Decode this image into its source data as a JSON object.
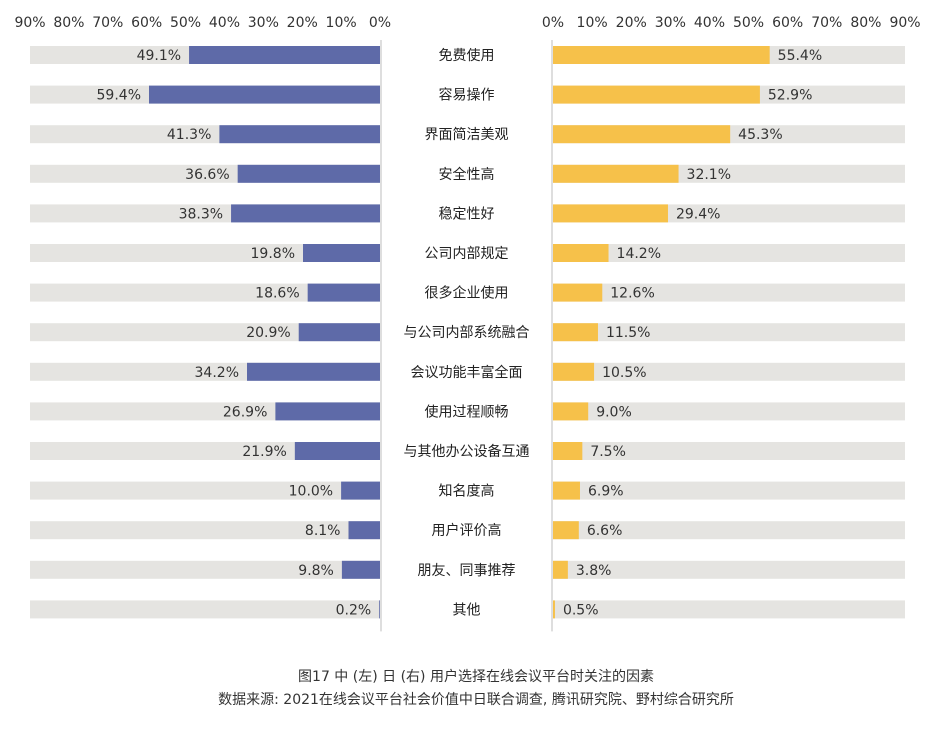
{
  "chart_data": {
    "type": "bar",
    "categories": [
      "免费使用",
      "容易操作",
      "界面简洁美观",
      "安全性高",
      "稳定性好",
      "公司内部规定",
      "很多企业使用",
      "与公司内部系统融合",
      "会议功能丰富全面",
      "使用过程顺畅",
      "与其他办公设备互通",
      "知名度高",
      "用户评价高",
      "朋友、同事推荐",
      "其他"
    ],
    "series": [
      {
        "name": "中",
        "side": "left",
        "color": "#5e6aa8",
        "values": [
          49.1,
          59.4,
          41.3,
          36.6,
          38.3,
          19.8,
          18.6,
          20.9,
          34.2,
          26.9,
          21.9,
          10.0,
          8.1,
          9.8,
          0.2
        ],
        "labels": [
          "49.1%",
          "59.4%",
          "41.3%",
          "36.6%",
          "38.3%",
          "19.8%",
          "18.6%",
          "20.9%",
          "34.2%",
          "26.9%",
          "21.9%",
          "10.0%",
          "8.1%",
          "9.8%",
          "0.2%"
        ]
      },
      {
        "name": "日",
        "side": "right",
        "color": "#f6c14a",
        "values": [
          55.4,
          52.9,
          45.3,
          32.1,
          29.4,
          14.2,
          12.6,
          11.5,
          10.5,
          9.0,
          7.5,
          6.9,
          6.6,
          3.8,
          0.5
        ],
        "labels": [
          "55.4%",
          "52.9%",
          "45.3%",
          "32.1%",
          "29.4%",
          "14.2%",
          "12.6%",
          "11.5%",
          "10.5%",
          "9.0%",
          "7.5%",
          "6.9%",
          "6.6%",
          "3.8%",
          "0.5%"
        ]
      }
    ],
    "xlim": [
      0,
      90
    ],
    "ticks": [
      "0%",
      "10%",
      "20%",
      "30%",
      "40%",
      "50%",
      "60%",
      "70%",
      "80%",
      "90%"
    ],
    "background_bar_color": "#e5e4e1",
    "axis_color": "#bcbcbc"
  },
  "caption": {
    "line1": "图17  中 (左) 日 (右) 用户选择在线会议平台时关注的因素",
    "line2": "数据来源: 2021在线会议平台社会价值中日联合调查, 腾讯研究院、野村综合研究所"
  }
}
